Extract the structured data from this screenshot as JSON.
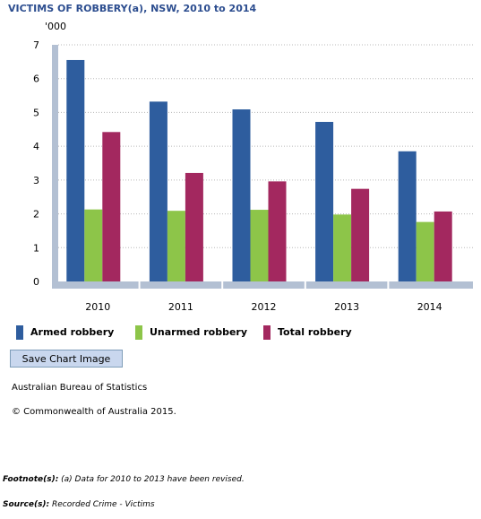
{
  "chart_data": {
    "type": "bar",
    "title": "VICTIMS OF ROBBERY(a), NSW, 2010 to 2014",
    "ylabel": "'000",
    "xlabel": "",
    "ylim": [
      0,
      7
    ],
    "yticks": [
      0,
      1,
      2,
      3,
      4,
      5,
      6,
      7
    ],
    "grid": true,
    "legend_position": "bottom",
    "categories": [
      "2010",
      "2011",
      "2012",
      "2013",
      "2014"
    ],
    "series": [
      {
        "name": "Armed robbery",
        "color": "#2e5d9e",
        "values": [
          6.55,
          5.32,
          5.09,
          4.72,
          3.85
        ]
      },
      {
        "name": "Unarmed robbery",
        "color": "#8dc549",
        "values": [
          2.13,
          2.09,
          2.12,
          1.98,
          1.76
        ]
      },
      {
        "name": "Total robbery",
        "color": "#a3285f",
        "values": [
          4.42,
          3.21,
          2.96,
          2.74,
          2.07
        ]
      }
    ]
  },
  "buttons": {
    "save_chart_image": "Save Chart Image"
  },
  "credits": {
    "agency": "Australian Bureau of Statistics",
    "copyright": "© Commonwealth of Australia 2015."
  },
  "footnote": {
    "label": "Footnote(s):",
    "text": " (a) Data for 2010 to 2013 have been revised."
  },
  "source": {
    "label": "Source(s):",
    "text": " Recorded Crime - Victims"
  }
}
